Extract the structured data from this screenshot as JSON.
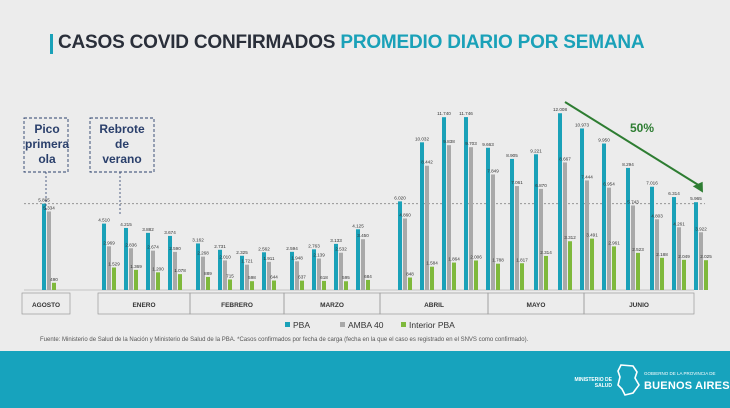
{
  "title": {
    "part1": "CASOS COVID CONFIRMADOS",
    "part2": "PROMEDIO DIARIO POR SEMANA"
  },
  "source": "Fuente: Ministerio de Salud de la Nación y Ministerio de Salud de la PBA. *Casos confirmados por fecha de carga (fecha en la que el caso es registrado en el SNVS como confirmado).",
  "footer": {
    "ministerio": "MINISTERIO DE SALUD",
    "gobierno": "GOBIERNO DE LA PROVINCIA DE",
    "provincia": "BUENOS AIRES"
  },
  "colors": {
    "pba": "#1aa1b8",
    "amba": "#a9a9a9",
    "interior": "#7fb93c",
    "arrow": "#2e7d32"
  },
  "chart_data": {
    "type": "bar",
    "series": [
      {
        "name": "PBA",
        "values": [
          5865,
          4510,
          4215,
          3882,
          3674,
          3162,
          2731,
          2325,
          2562,
          2594,
          2763,
          3133,
          4125,
          6020,
          10032,
          11740,
          11746,
          9663,
          8905,
          9221,
          12008,
          10973,
          9950,
          8294,
          7016,
          6314,
          5965
        ]
      },
      {
        "name": "AMBA 40",
        "values": [
          5334,
          2969,
          2836,
          2674,
          2590,
          2268,
          2010,
          1721,
          1911,
          1948,
          2139,
          2532,
          3450,
          4860,
          8442,
          9838,
          9703,
          7849,
          7061,
          6870,
          8667,
          7444,
          6954,
          5743,
          4803,
          4261,
          3922
        ]
      },
      {
        "name": "Interior PBA",
        "values": [
          490,
          1529,
          1369,
          1200,
          1078,
          889,
          715,
          598,
          644,
          637,
          618,
          595,
          684,
          848,
          1584,
          1864,
          2006,
          1788,
          1817,
          2314,
          3312,
          3491,
          2961,
          2523,
          2188,
          2049,
          2025
        ]
      }
    ],
    "value_labels": {
      "PBA": [
        "5.865",
        "4.510",
        "4.215",
        "3.882",
        "3.674",
        "3.162",
        "2.731",
        "2.325",
        "2.562",
        "2.594",
        "2.763",
        "3.133",
        "4.125",
        "6.020",
        "10.032",
        "11.740",
        "11.746",
        "9.663",
        "8.905",
        "9.221",
        "12.008",
        "10.973",
        "9.950",
        "8.294",
        "7.016",
        "6.314",
        "5.965"
      ],
      "AMBA 40": [
        "5.334",
        "2.969",
        "2.836",
        "2.674",
        "2.590",
        "2.268",
        "2.010",
        "1.721",
        "1.911",
        "1.948",
        "2.139",
        "2.532",
        "3.450",
        "4.860",
        "8.442",
        "9.838",
        "9.703",
        "7.849",
        "7.061",
        "6.870",
        "8.667",
        "7.444",
        "6.954",
        "5.743",
        "4.803",
        "4.261",
        "3.922"
      ],
      "Interior PBA": [
        "490",
        "1.529",
        "1.369",
        "1.200",
        "1.078",
        "889",
        "715",
        "598",
        "644",
        "637",
        "618",
        "595",
        "684",
        "848",
        "1.584",
        "1.864",
        "2.006",
        "1.788",
        "1.817",
        "2.314",
        "3.312",
        "3.491",
        "2.961",
        "2.523",
        "2.188",
        "2.049",
        "2.025"
      ]
    },
    "months": [
      {
        "label": "AGOSTO",
        "weeks": 1
      },
      {
        "label": "ENERO",
        "weeks": 4
      },
      {
        "label": "FEBRERO",
        "weeks": 4
      },
      {
        "label": "MARZO",
        "weeks": 4
      },
      {
        "label": "ABRIL",
        "weeks": 5
      },
      {
        "label": "MAYO",
        "weeks": 4
      },
      {
        "label": "JUNIO",
        "weeks": 5
      }
    ],
    "annotations": [
      "Pico primera ola",
      "Rebrote de verano"
    ],
    "trend_label": "50%",
    "reference_line_value": 5865,
    "ylim": [
      0,
      12500
    ],
    "legend": [
      "PBA",
      "AMBA 40",
      "Interior PBA"
    ],
    "legend_position": "bottom-center",
    "grid": false
  }
}
